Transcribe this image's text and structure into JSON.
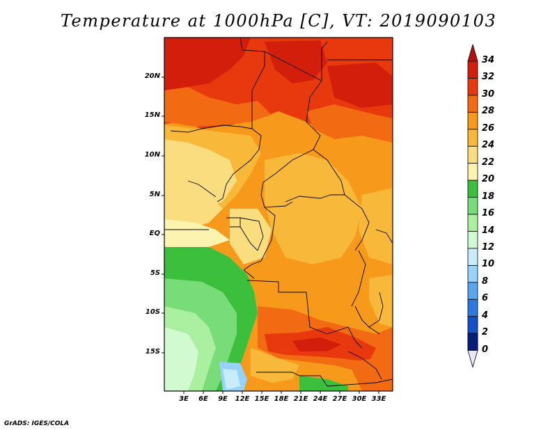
{
  "title": "Temperature at 1000hPa [C], VT: 2019090103",
  "footer": "GrADS: IGES/COLA",
  "lat_ticks": [
    "20N",
    "15N",
    "10N",
    "5N",
    "EQ",
    "5S",
    "10S",
    "15S"
  ],
  "lon_ticks": [
    "3E",
    "6E",
    "9E",
    "12E",
    "15E",
    "18E",
    "21E",
    "24E",
    "27E",
    "30E",
    "33E"
  ],
  "colorbar": {
    "labels": [
      "34",
      "32",
      "30",
      "28",
      "26",
      "24",
      "22",
      "20",
      "18",
      "16",
      "14",
      "12",
      "10",
      "8",
      "6",
      "4",
      "2",
      "0"
    ],
    "colors": [
      "#d21e0a",
      "#e8380e",
      "#f26a12",
      "#f79a1c",
      "#f8b93a",
      "#fadd7e",
      "#fcf3b0",
      "#3cbf3c",
      "#78dc78",
      "#aaf0a0",
      "#d2fad0",
      "#c8ecfa",
      "#96d2fa",
      "#5aa5f0",
      "#2d78e1",
      "#1450c8",
      "#0a30a0",
      "#061e78"
    ],
    "top_color": "#b40f0a",
    "bottom_color": "#e8e8fa"
  }
}
